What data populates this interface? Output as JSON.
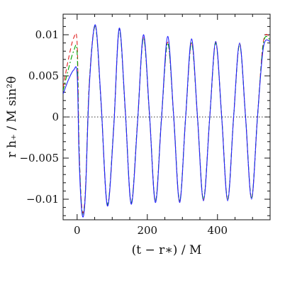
{
  "chart_data": {
    "type": "line",
    "title": "",
    "xlabel": "(t − r∗) / M",
    "ylabel": "r h₊ / M sin²θ",
    "xlim": [
      -40,
      550
    ],
    "ylim": [
      -0.0125,
      0.0125
    ],
    "x_ticks": [
      0,
      200,
      400
    ],
    "x_tick_labels": [
      "0",
      "200",
      "400"
    ],
    "y_ticks": [
      -0.01,
      -0.005,
      0,
      0.005,
      0.01
    ],
    "y_tick_labels": [
      "−0.01",
      "−0.005",
      "0",
      "0.005",
      "0.01"
    ],
    "grid": false,
    "legend": false,
    "reference_line": {
      "y": 0,
      "style": "dotted"
    },
    "series": [
      {
        "color": "#2222ff",
        "dash": "solid",
        "x": [
          -40,
          -25,
          -10,
          0,
          5,
          10,
          15,
          20,
          25,
          35,
          52,
          68,
          86,
          104,
          120,
          137,
          154,
          172,
          189,
          206,
          223,
          240,
          258,
          275,
          292,
          309,
          326,
          343,
          360,
          378,
          395,
          412,
          429,
          446,
          463,
          480,
          497,
          514,
          531,
          550
        ],
        "y": [
          0.0028,
          0.0045,
          0.0057,
          0.0052,
          -0.004,
          -0.0095,
          -0.012,
          -0.0115,
          -0.008,
          0.004,
          0.0112,
          0.002,
          -0.0108,
          -0.0015,
          0.0108,
          0.001,
          -0.0106,
          -0.0008,
          0.01,
          0.0005,
          -0.0104,
          -0.0005,
          0.0098,
          0.0002,
          -0.0104,
          -0.0002,
          0.0095,
          0.0,
          -0.0102,
          0.0,
          0.0092,
          0.0,
          -0.0102,
          0.0,
          0.009,
          0.0,
          -0.01,
          0.0,
          0.0085,
          0.0092
        ]
      },
      {
        "color": "#00a000",
        "dash": "dash-dot",
        "x": [
          -40,
          -25,
          -10,
          0,
          5,
          10,
          15,
          20,
          25,
          35,
          52,
          68,
          86,
          104,
          120,
          137,
          154,
          172,
          189,
          206,
          223,
          240,
          258,
          275,
          292,
          309,
          326,
          343,
          360,
          378,
          395,
          412,
          429,
          446,
          463,
          480,
          497,
          514,
          531,
          550
        ],
        "y": [
          0.0032,
          0.0058,
          0.008,
          0.0078,
          -0.003,
          -0.009,
          -0.0118,
          -0.0113,
          -0.0078,
          0.0042,
          0.011,
          0.0018,
          -0.0106,
          -0.0013,
          0.0106,
          0.0008,
          -0.0104,
          -0.0006,
          0.0096,
          0.0004,
          -0.0102,
          -0.0004,
          0.009,
          0.0002,
          -0.0102,
          -0.0002,
          0.009,
          0.0,
          -0.01,
          0.0,
          0.009,
          0.0,
          -0.01,
          0.0,
          0.0088,
          0.0,
          -0.0098,
          0.0,
          0.009,
          0.0094
        ]
      },
      {
        "color": "#e02020",
        "dash": "dash",
        "x": [
          -40,
          -25,
          -10,
          0,
          5,
          10,
          15,
          20,
          25,
          35,
          52,
          68,
          86,
          104,
          120,
          137,
          154,
          172,
          189,
          206,
          223,
          240,
          258,
          275,
          292,
          309,
          326,
          343,
          360,
          378,
          395,
          412,
          429,
          446,
          463,
          480,
          497,
          514,
          531,
          550
        ],
        "y": [
          0.0036,
          0.007,
          0.0096,
          0.009,
          -0.0025,
          -0.0088,
          -0.0115,
          -0.011,
          -0.0076,
          0.0044,
          0.0111,
          0.0019,
          -0.0107,
          -0.0014,
          0.0107,
          0.0009,
          -0.0105,
          -0.0007,
          0.0097,
          0.0004,
          -0.0103,
          -0.0004,
          0.0091,
          0.0002,
          -0.0103,
          -0.0002,
          0.0091,
          0.0,
          -0.0101,
          0.0,
          0.0091,
          0.0,
          -0.0101,
          0.0,
          0.0089,
          0.0,
          -0.0099,
          0.0,
          0.0092,
          0.0097
        ]
      }
    ]
  }
}
